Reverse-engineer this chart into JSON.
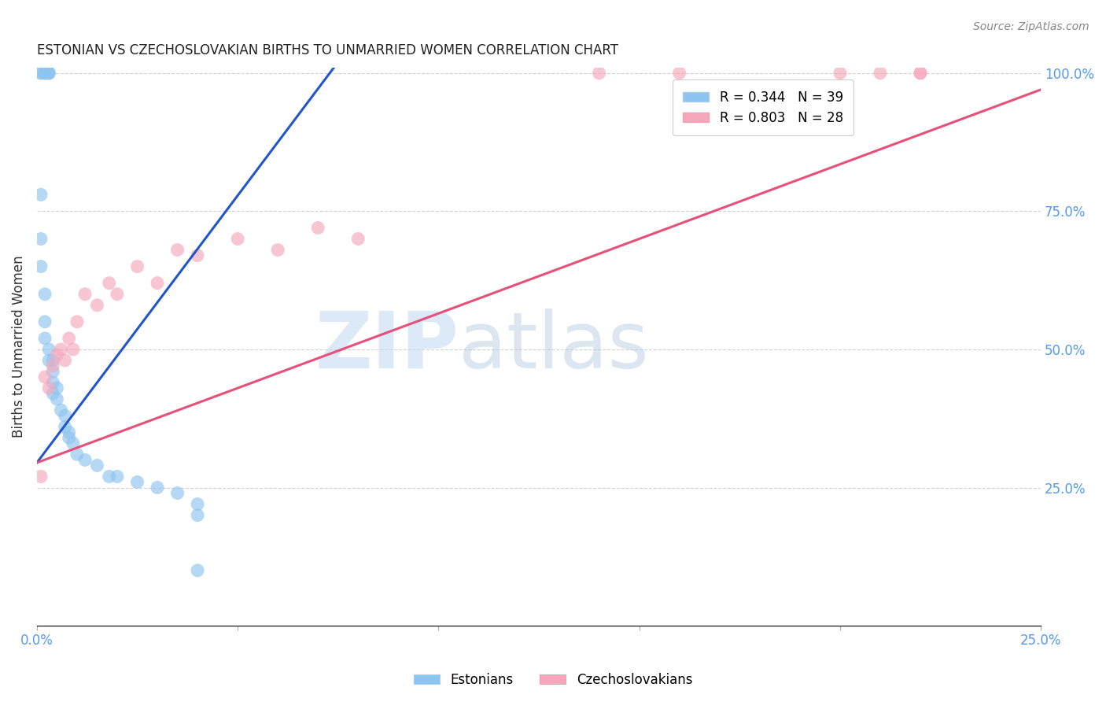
{
  "title": "ESTONIAN VS CZECHOSLOVAKIAN BIRTHS TO UNMARRIED WOMEN CORRELATION CHART",
  "source": "Source: ZipAtlas.com",
  "ylabel": "Births to Unmarried Women",
  "x_min": 0.0,
  "x_max": 0.25,
  "y_min": 0.0,
  "y_max": 1.0,
  "x_ticks": [
    0.0,
    0.05,
    0.1,
    0.15,
    0.2,
    0.25
  ],
  "x_tick_labels": [
    "0.0%",
    "",
    "",
    "",
    "",
    "25.0%"
  ],
  "y_ticks": [
    0.25,
    0.5,
    0.75,
    1.0
  ],
  "y_tick_labels": [
    "25.0%",
    "50.0%",
    "75.0%",
    "100.0%"
  ],
  "estonian_R": 0.344,
  "estonian_N": 39,
  "czechoslovakian_R": 0.803,
  "czechoslovakian_N": 28,
  "estonian_color": "#8ec4f0",
  "czechoslovakian_color": "#f5a8bc",
  "estonian_line_color": "#2255cc",
  "czechoslovakian_line_color": "#e8507a",
  "watermark_zip": "ZIP",
  "watermark_atlas": "atlas",
  "estonian_x": [
    0.001,
    0.001,
    0.002,
    0.002,
    0.002,
    0.003,
    0.003,
    0.003,
    0.001,
    0.001,
    0.001,
    0.002,
    0.002,
    0.002,
    0.003,
    0.003,
    0.004,
    0.004,
    0.004,
    0.004,
    0.005,
    0.005,
    0.006,
    0.007,
    0.007,
    0.008,
    0.008,
    0.009,
    0.01,
    0.012,
    0.015,
    0.018,
    0.02,
    0.025,
    0.03,
    0.035,
    0.04,
    0.04,
    0.04
  ],
  "estonian_y": [
    1.0,
    1.0,
    1.0,
    1.0,
    1.0,
    1.0,
    1.0,
    1.0,
    0.78,
    0.7,
    0.65,
    0.6,
    0.55,
    0.52,
    0.5,
    0.48,
    0.48,
    0.46,
    0.44,
    0.42,
    0.43,
    0.41,
    0.39,
    0.38,
    0.36,
    0.35,
    0.34,
    0.33,
    0.31,
    0.3,
    0.29,
    0.27,
    0.27,
    0.26,
    0.25,
    0.24,
    0.22,
    0.2,
    0.1
  ],
  "czechoslovakian_x": [
    0.001,
    0.002,
    0.003,
    0.004,
    0.005,
    0.006,
    0.007,
    0.008,
    0.009,
    0.01,
    0.012,
    0.015,
    0.018,
    0.02,
    0.025,
    0.03,
    0.035,
    0.04,
    0.05,
    0.06,
    0.07,
    0.08,
    0.14,
    0.16,
    0.2,
    0.21,
    0.22,
    0.22
  ],
  "czechoslovakian_y": [
    0.27,
    0.45,
    0.43,
    0.47,
    0.49,
    0.5,
    0.48,
    0.52,
    0.5,
    0.55,
    0.6,
    0.58,
    0.62,
    0.6,
    0.65,
    0.62,
    0.68,
    0.67,
    0.7,
    0.68,
    0.72,
    0.7,
    1.0,
    1.0,
    1.0,
    1.0,
    1.0,
    1.0
  ]
}
